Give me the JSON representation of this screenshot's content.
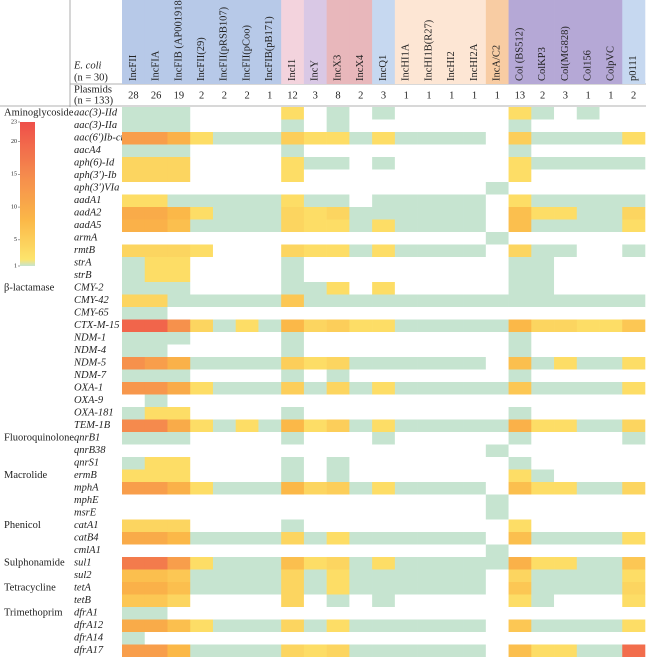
{
  "chart_data": {
    "type": "heatmap",
    "ecoli_label": "E. coli",
    "ecoli_n": "(n = 30)",
    "plasmids_label": "Plasmids",
    "plasmids_n": "(n = 133)",
    "columns": [
      "IncFII",
      "IncFIA",
      "IncFIB (AP001918)",
      "IncFII(29)",
      "IncFII(pRSB107)",
      "IncFII(pCoo)",
      "IncFIB(pB171)",
      "IncI1",
      "IncY",
      "IncX3",
      "IncX4",
      "IncQ1",
      "IncHI1A",
      "IncHI1B(R27)",
      "IncHI2",
      "IncHI2A",
      "IncA/C2",
      "Col (BS512)",
      "ColKP3",
      "Col(MG828)",
      "Col156",
      "ColpVC",
      "p0111"
    ],
    "column_counts": [
      28,
      26,
      19,
      2,
      2,
      2,
      1,
      12,
      3,
      8,
      2,
      3,
      1,
      1,
      1,
      1,
      1,
      13,
      2,
      3,
      1,
      1,
      2
    ],
    "column_colors": [
      "#b7c9e8",
      "#b7c9e8",
      "#b7c9e8",
      "#b7c9e8",
      "#b7c9e8",
      "#b7c9e8",
      "#b7c9e8",
      "#f3d3dd",
      "#d9c8e5",
      "#e8b7bb",
      "#e8b7bb",
      "#c6d8f0",
      "#fde6d4",
      "#fde6d4",
      "#fde6d4",
      "#fde6d4",
      "#f8cca3",
      "#b5a8d6",
      "#b5a8d6",
      "#b5a8d6",
      "#b5a8d6",
      "#b5a8d6",
      "#c6d8f0"
    ],
    "groups": [
      {
        "name": "Aminoglycoside",
        "row": 0
      },
      {
        "name": "β-lactamase",
        "row": 14
      },
      {
        "name": "Fluoroquinolone",
        "row": 26
      },
      {
        "name": "Macrolide",
        "row": 29
      },
      {
        "name": "Phenicol",
        "row": 33
      },
      {
        "name": "Sulphonamide",
        "row": 36
      },
      {
        "name": "Tetracycline",
        "row": 38
      },
      {
        "name": "Trimethoprim",
        "row": 40
      }
    ],
    "rows": [
      "aac(3)-IId",
      "aac(3)-IIa",
      "aac(6')Ib-cr",
      "aacA4",
      "aph(6)-Id",
      "aph(3')-Ib",
      "aph(3')VIa",
      "aadA1",
      "aadA2",
      "aadA5",
      "armA",
      "rmtB",
      "strA",
      "strB",
      "CMY-2",
      "CMY-42",
      "CMY-65",
      "CTX-M-15",
      "NDM-1",
      "NDM-4",
      "NDM-5",
      "NDM-7",
      "OXA-1",
      "OXA-9",
      "OXA-181",
      "TEM-1B",
      "qnrB1",
      "qnrB38",
      "qnrS1",
      "ermB",
      "mphA",
      "mphE",
      "msrE",
      "catA1",
      "catB4",
      "cmlA1",
      "sul1",
      "sul2",
      "tetA",
      "tetB",
      "dfrA1",
      "dfrA12",
      "dfrA14",
      "dfrA17"
    ],
    "values": [
      [
        1,
        1,
        1,
        0,
        0,
        0,
        0,
        3,
        0,
        1,
        0,
        1,
        0,
        0,
        0,
        0,
        0,
        3,
        1,
        0,
        1,
        0,
        0
      ],
      [
        1,
        1,
        1,
        0,
        0,
        0,
        0,
        1,
        0,
        1,
        0,
        0,
        0,
        0,
        0,
        0,
        0,
        1,
        0,
        0,
        0,
        0,
        0
      ],
      [
        12,
        12,
        9,
        3,
        1,
        1,
        1,
        5,
        3,
        3,
        1,
        3,
        1,
        1,
        1,
        1,
        0,
        5,
        1,
        1,
        1,
        1,
        3
      ],
      [
        1,
        1,
        1,
        0,
        0,
        0,
        0,
        1,
        0,
        0,
        0,
        0,
        0,
        0,
        0,
        0,
        0,
        1,
        0,
        0,
        0,
        0,
        0
      ],
      [
        4,
        4,
        4,
        0,
        0,
        0,
        0,
        3,
        1,
        1,
        0,
        1,
        0,
        0,
        0,
        0,
        0,
        3,
        1,
        1,
        1,
        1,
        1
      ],
      [
        4,
        4,
        4,
        0,
        0,
        0,
        0,
        3,
        0,
        0,
        0,
        0,
        0,
        0,
        0,
        0,
        0,
        3,
        0,
        0,
        0,
        0,
        0
      ],
      [
        0,
        0,
        0,
        0,
        0,
        0,
        0,
        0,
        0,
        0,
        0,
        0,
        0,
        0,
        0,
        0,
        1,
        0,
        0,
        0,
        0,
        0,
        0
      ],
      [
        3,
        3,
        1,
        1,
        1,
        1,
        1,
        3,
        1,
        1,
        0,
        1,
        1,
        1,
        1,
        1,
        0,
        3,
        1,
        1,
        1,
        1,
        1
      ],
      [
        10,
        10,
        8,
        3,
        1,
        1,
        1,
        4,
        3,
        4,
        1,
        1,
        1,
        1,
        1,
        1,
        0,
        7,
        3,
        3,
        1,
        1,
        4
      ],
      [
        9,
        9,
        7,
        1,
        1,
        1,
        1,
        4,
        3,
        3,
        1,
        3,
        1,
        1,
        1,
        1,
        0,
        7,
        1,
        1,
        1,
        1,
        3
      ],
      [
        0,
        0,
        0,
        0,
        0,
        0,
        0,
        0,
        0,
        0,
        0,
        0,
        0,
        0,
        0,
        0,
        1,
        0,
        0,
        0,
        0,
        0,
        0
      ],
      [
        4,
        4,
        4,
        3,
        0,
        0,
        0,
        4,
        3,
        3,
        1,
        3,
        1,
        1,
        1,
        1,
        0,
        4,
        1,
        1,
        0,
        0,
        1
      ],
      [
        1,
        3,
        3,
        0,
        0,
        0,
        0,
        1,
        0,
        0,
        0,
        0,
        0,
        0,
        0,
        0,
        0,
        1,
        1,
        0,
        0,
        0,
        0
      ],
      [
        1,
        3,
        3,
        0,
        0,
        0,
        0,
        1,
        0,
        0,
        0,
        0,
        0,
        0,
        0,
        0,
        0,
        1,
        1,
        0,
        0,
        0,
        0
      ],
      [
        1,
        1,
        1,
        0,
        0,
        0,
        0,
        1,
        1,
        3,
        0,
        3,
        0,
        0,
        0,
        0,
        0,
        1,
        1,
        0,
        0,
        0,
        0
      ],
      [
        4,
        4,
        1,
        1,
        1,
        1,
        1,
        6,
        1,
        1,
        1,
        1,
        1,
        1,
        1,
        1,
        1,
        1,
        1,
        1,
        1,
        1,
        1
      ],
      [
        1,
        1,
        0,
        0,
        0,
        0,
        0,
        0,
        0,
        0,
        0,
        0,
        0,
        0,
        0,
        0,
        0,
        0,
        0,
        0,
        0,
        0,
        0
      ],
      [
        20,
        20,
        14,
        4,
        1,
        3,
        1,
        8,
        4,
        5,
        3,
        3,
        1,
        1,
        1,
        1,
        1,
        8,
        4,
        4,
        3,
        3,
        6
      ],
      [
        1,
        1,
        1,
        0,
        0,
        0,
        0,
        1,
        0,
        0,
        0,
        0,
        0,
        0,
        0,
        0,
        0,
        1,
        0,
        0,
        0,
        0,
        0
      ],
      [
        1,
        1,
        0,
        0,
        0,
        0,
        0,
        1,
        0,
        0,
        0,
        0,
        0,
        0,
        0,
        0,
        0,
        1,
        0,
        0,
        0,
        0,
        0
      ],
      [
        14,
        12,
        9,
        1,
        1,
        1,
        1,
        5,
        3,
        4,
        1,
        1,
        1,
        1,
        1,
        1,
        0,
        7,
        1,
        3,
        1,
        1,
        3
      ],
      [
        1,
        1,
        1,
        0,
        0,
        0,
        0,
        1,
        0,
        1,
        0,
        0,
        0,
        0,
        0,
        0,
        0,
        1,
        0,
        0,
        0,
        0,
        0
      ],
      [
        13,
        13,
        10,
        3,
        1,
        1,
        1,
        5,
        1,
        4,
        1,
        3,
        1,
        1,
        1,
        1,
        1,
        6,
        1,
        1,
        1,
        1,
        3
      ],
      [
        0,
        1,
        0,
        0,
        0,
        0,
        0,
        0,
        0,
        0,
        0,
        0,
        0,
        0,
        0,
        0,
        0,
        0,
        0,
        0,
        0,
        0,
        0
      ],
      [
        1,
        3,
        3,
        0,
        0,
        0,
        0,
        1,
        0,
        0,
        0,
        0,
        0,
        0,
        0,
        0,
        0,
        1,
        0,
        0,
        0,
        0,
        0
      ],
      [
        15,
        15,
        10,
        3,
        1,
        3,
        1,
        8,
        3,
        5,
        1,
        3,
        1,
        1,
        1,
        1,
        1,
        9,
        3,
        3,
        1,
        1,
        4
      ],
      [
        1,
        1,
        1,
        0,
        0,
        0,
        0,
        1,
        0,
        0,
        0,
        1,
        0,
        0,
        0,
        0,
        0,
        1,
        0,
        0,
        0,
        0,
        1
      ],
      [
        0,
        0,
        0,
        0,
        0,
        0,
        0,
        0,
        0,
        0,
        0,
        0,
        0,
        0,
        0,
        0,
        1,
        0,
        0,
        0,
        0,
        0,
        0
      ],
      [
        1,
        3,
        3,
        0,
        0,
        0,
        0,
        1,
        0,
        1,
        0,
        0,
        0,
        0,
        0,
        0,
        0,
        1,
        0,
        0,
        0,
        0,
        0
      ],
      [
        3,
        3,
        3,
        0,
        0,
        0,
        0,
        1,
        0,
        1,
        0,
        0,
        0,
        0,
        0,
        0,
        0,
        3,
        1,
        0,
        0,
        0,
        0
      ],
      [
        12,
        12,
        9,
        3,
        1,
        1,
        1,
        8,
        4,
        5,
        1,
        3,
        1,
        1,
        1,
        1,
        0,
        7,
        3,
        3,
        1,
        1,
        4
      ],
      [
        0,
        0,
        0,
        0,
        0,
        0,
        0,
        0,
        0,
        0,
        0,
        0,
        0,
        0,
        0,
        0,
        1,
        0,
        0,
        0,
        0,
        0,
        0
      ],
      [
        0,
        0,
        0,
        0,
        0,
        0,
        0,
        0,
        0,
        0,
        0,
        0,
        0,
        0,
        0,
        0,
        1,
        0,
        0,
        0,
        0,
        0,
        0
      ],
      [
        4,
        4,
        4,
        0,
        0,
        0,
        0,
        1,
        0,
        0,
        0,
        0,
        0,
        0,
        0,
        0,
        0,
        3,
        0,
        0,
        0,
        0,
        0
      ],
      [
        10,
        10,
        8,
        1,
        1,
        1,
        1,
        4,
        1,
        3,
        1,
        1,
        1,
        1,
        1,
        1,
        0,
        7,
        1,
        1,
        1,
        1,
        3
      ],
      [
        0,
        0,
        0,
        0,
        0,
        0,
        0,
        0,
        0,
        0,
        0,
        0,
        0,
        0,
        0,
        0,
        1,
        0,
        0,
        0,
        0,
        0,
        0
      ],
      [
        17,
        17,
        12,
        3,
        1,
        1,
        1,
        7,
        3,
        4,
        1,
        3,
        1,
        1,
        1,
        1,
        1,
        9,
        3,
        3,
        1,
        1,
        6
      ],
      [
        7,
        7,
        6,
        1,
        1,
        1,
        1,
        4,
        1,
        3,
        1,
        1,
        1,
        1,
        1,
        1,
        0,
        4,
        1,
        1,
        1,
        1,
        3
      ],
      [
        9,
        9,
        7,
        1,
        1,
        1,
        1,
        4,
        1,
        3,
        1,
        1,
        1,
        1,
        1,
        1,
        0,
        6,
        1,
        1,
        1,
        1,
        4
      ],
      [
        6,
        6,
        4,
        0,
        0,
        0,
        0,
        4,
        0,
        1,
        0,
        1,
        0,
        0,
        0,
        0,
        0,
        3,
        1,
        0,
        0,
        0,
        3
      ],
      [
        1,
        1,
        0,
        0,
        0,
        0,
        0,
        0,
        0,
        0,
        0,
        0,
        0,
        0,
        0,
        0,
        0,
        0,
        0,
        0,
        0,
        0,
        0
      ],
      [
        10,
        10,
        7,
        3,
        1,
        1,
        1,
        4,
        1,
        3,
        1,
        1,
        1,
        1,
        1,
        1,
        0,
        6,
        1,
        1,
        1,
        1,
        3
      ],
      [
        1,
        0,
        0,
        0,
        0,
        0,
        0,
        0,
        0,
        0,
        0,
        0,
        0,
        0,
        0,
        0,
        0,
        0,
        0,
        0,
        0,
        0,
        0
      ],
      [
        12,
        12,
        8,
        1,
        1,
        1,
        1,
        4,
        3,
        4,
        1,
        1,
        1,
        1,
        1,
        1,
        0,
        7,
        3,
        3,
        1,
        1,
        19
      ]
    ],
    "zlim": [
      1,
      23
    ],
    "zticks": [
      1,
      5,
      10,
      15,
      20,
      23
    ],
    "colorscale": [
      [
        1,
        "#c6e4d0"
      ],
      [
        2,
        "#fde46c"
      ],
      [
        8,
        "#fbb848"
      ],
      [
        15,
        "#f58a4d"
      ],
      [
        23,
        "#ee4f4a"
      ]
    ],
    "empty_color": "#ffffff"
  }
}
